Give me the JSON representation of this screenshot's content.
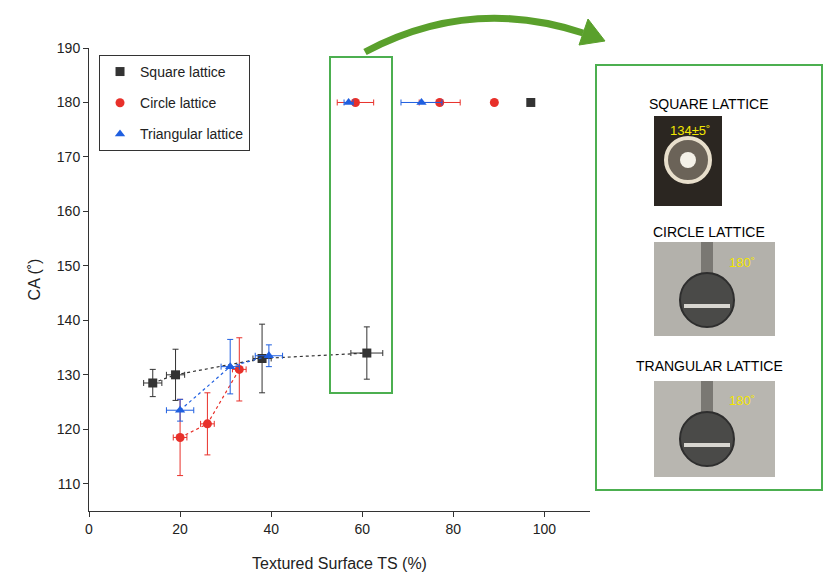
{
  "chart_data": {
    "type": "scatter",
    "xlabel": "Textured Surface TS (%)",
    "ylabel": "CA (˚)",
    "xlim": [
      0,
      110
    ],
    "xticks": [
      0,
      20,
      40,
      60,
      80,
      100
    ],
    "ylim": [
      105,
      190
    ],
    "yticks": [
      110,
      120,
      130,
      140,
      150,
      160,
      170,
      180,
      190
    ],
    "legend": "upper left",
    "series": [
      {
        "name": "Square lattice",
        "color": "#333333",
        "marker": "square",
        "line_style": "dotted",
        "x": [
          14,
          19,
          38,
          61
        ],
        "values": [
          128.5,
          130,
          133,
          134
        ],
        "x_error": [
          2,
          2,
          2,
          3.5
        ],
        "y_error": [
          2.5,
          4.7,
          6.3,
          4.8
        ]
      },
      {
        "name": "Square lattice",
        "color": "#333333",
        "marker": "square",
        "line_style": "none",
        "x": [
          97
        ],
        "values": [
          180
        ],
        "x_error": [
          0
        ],
        "y_error": [
          0
        ]
      },
      {
        "name": "Circle lattice",
        "color": "#e8302a",
        "marker": "circle",
        "line_style": "dotted",
        "x": [
          20,
          26,
          33
        ],
        "values": [
          118.5,
          121,
          131
        ],
        "x_error": [
          1.5,
          1.5,
          1.5
        ],
        "y_error": [
          7,
          5.7,
          5.8
        ]
      },
      {
        "name": "Circle lattice",
        "color": "#e8302a",
        "marker": "circle",
        "line_style": "none",
        "x": [
          58.5,
          77,
          89
        ],
        "values": [
          180,
          180,
          180
        ],
        "x_error": [
          4,
          4.5,
          0
        ],
        "y_error": [
          0,
          0,
          0
        ]
      },
      {
        "name": "Triangular lattice",
        "color": "#1f5fe0",
        "marker": "triangle",
        "line_style": "dotted",
        "x": [
          20,
          31,
          39.5
        ],
        "values": [
          123.5,
          131.5,
          133.5
        ],
        "x_error": [
          3,
          2,
          3
        ],
        "y_error": [
          2,
          5,
          2
        ]
      },
      {
        "name": "Triangular lattice",
        "color": "#1f5fe0",
        "marker": "triangle",
        "line_style": "none",
        "x": [
          57,
          73
        ],
        "values": [
          180,
          180
        ],
        "x_error": [
          1,
          4.5
        ],
        "y_error": [
          0,
          0
        ]
      }
    ],
    "inset": {
      "panels": [
        {
          "title": "SQUARE LATTICE",
          "label": "134±5˚"
        },
        {
          "title": "CIRCLE LATTICE",
          "label": "180˚"
        },
        {
          "title": "TRANGULAR LATTICE",
          "label": "180˚"
        }
      ]
    }
  }
}
